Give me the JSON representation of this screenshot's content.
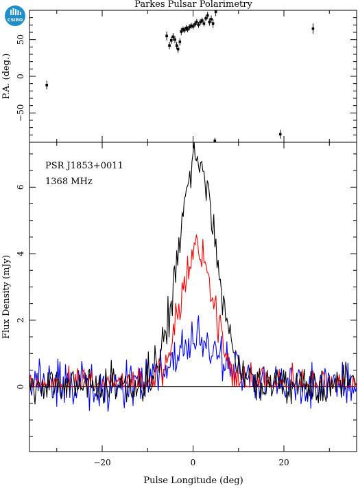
{
  "title": "Parkes Pulsar Polarimetry",
  "logo": {
    "text": "CSIRO",
    "icon": "csiro-logo-icon",
    "color": "#1e8fc9"
  },
  "colors": {
    "total": "#000000",
    "linear": "#ff0000",
    "circular": "#0000ff"
  },
  "chart_data": [
    {
      "type": "scatter",
      "panel": "top",
      "ylabel": "P.A. (deg.)",
      "xlim": [
        -36,
        36
      ],
      "ylim": [
        -90,
        90
      ],
      "x_ticks": [
        -20,
        0,
        20
      ],
      "y_ticks": [
        -50,
        0,
        50
      ],
      "y_tick_labels": [
        "−50",
        "0",
        "50"
      ],
      "points": [
        {
          "x": -32.2,
          "y": -12,
          "err": 6
        },
        {
          "x": -5.8,
          "y": 55,
          "err": 6
        },
        {
          "x": -5.2,
          "y": 42,
          "err": 5
        },
        {
          "x": -4.8,
          "y": 49,
          "err": 5
        },
        {
          "x": -4.4,
          "y": 54,
          "err": 5
        },
        {
          "x": -4.0,
          "y": 50,
          "err": 5
        },
        {
          "x": -3.6,
          "y": 42,
          "err": 5
        },
        {
          "x": -3.3,
          "y": 37,
          "err": 5
        },
        {
          "x": -2.9,
          "y": 47,
          "err": 5
        },
        {
          "x": -2.6,
          "y": 61,
          "err": 5
        },
        {
          "x": -2.2,
          "y": 64,
          "err": 4
        },
        {
          "x": -1.9,
          "y": 63,
          "err": 4
        },
        {
          "x": -1.5,
          "y": 66,
          "err": 4
        },
        {
          "x": -1.2,
          "y": 64,
          "err": 4
        },
        {
          "x": -0.8,
          "y": 67,
          "err": 4
        },
        {
          "x": -0.4,
          "y": 69,
          "err": 4
        },
        {
          "x": 0.0,
          "y": 68,
          "err": 4
        },
        {
          "x": 0.4,
          "y": 71,
          "err": 4
        },
        {
          "x": 0.8,
          "y": 74,
          "err": 4
        },
        {
          "x": 1.2,
          "y": 70,
          "err": 4
        },
        {
          "x": 1.6,
          "y": 74,
          "err": 4
        },
        {
          "x": 2.0,
          "y": 76,
          "err": 4
        },
        {
          "x": 2.4,
          "y": 72,
          "err": 4
        },
        {
          "x": 2.8,
          "y": 79,
          "err": 4
        },
        {
          "x": 3.2,
          "y": 83,
          "err": 5
        },
        {
          "x": 3.6,
          "y": 74,
          "err": 5
        },
        {
          "x": 4.0,
          "y": 78,
          "err": 5
        },
        {
          "x": 4.4,
          "y": 72,
          "err": 6
        },
        {
          "x": 5.0,
          "y": 88,
          "err": 6
        },
        {
          "x": 4.8,
          "y": -88,
          "err": 4
        },
        {
          "x": 19.2,
          "y": -79,
          "err": 6
        },
        {
          "x": 26.4,
          "y": 65,
          "err": 7
        }
      ]
    },
    {
      "type": "line",
      "panel": "bottom",
      "xlabel": "Pulse Longitude (deg)",
      "ylabel": "Flux Density (mJy)",
      "xlim": [
        -36,
        36
      ],
      "ylim": [
        -1.95,
        7.35
      ],
      "x_ticks": [
        -20,
        0,
        20
      ],
      "x_tick_labels": [
        "−20",
        "0",
        "20"
      ],
      "y_ticks": [
        0,
        2,
        4,
        6
      ],
      "annotations": [
        "PSR J1853+0011",
        "1368 MHz"
      ],
      "profile": {
        "center": 0.9,
        "total_peak": 6.8,
        "total_width": 4.2,
        "linear_peak": 4.2,
        "linear_width": 3.6,
        "circular_peak": 1.3,
        "circular_width": 5.0
      },
      "series": [
        {
          "key": "total"
        },
        {
          "key": "linear"
        },
        {
          "key": "circular"
        }
      ]
    }
  ]
}
